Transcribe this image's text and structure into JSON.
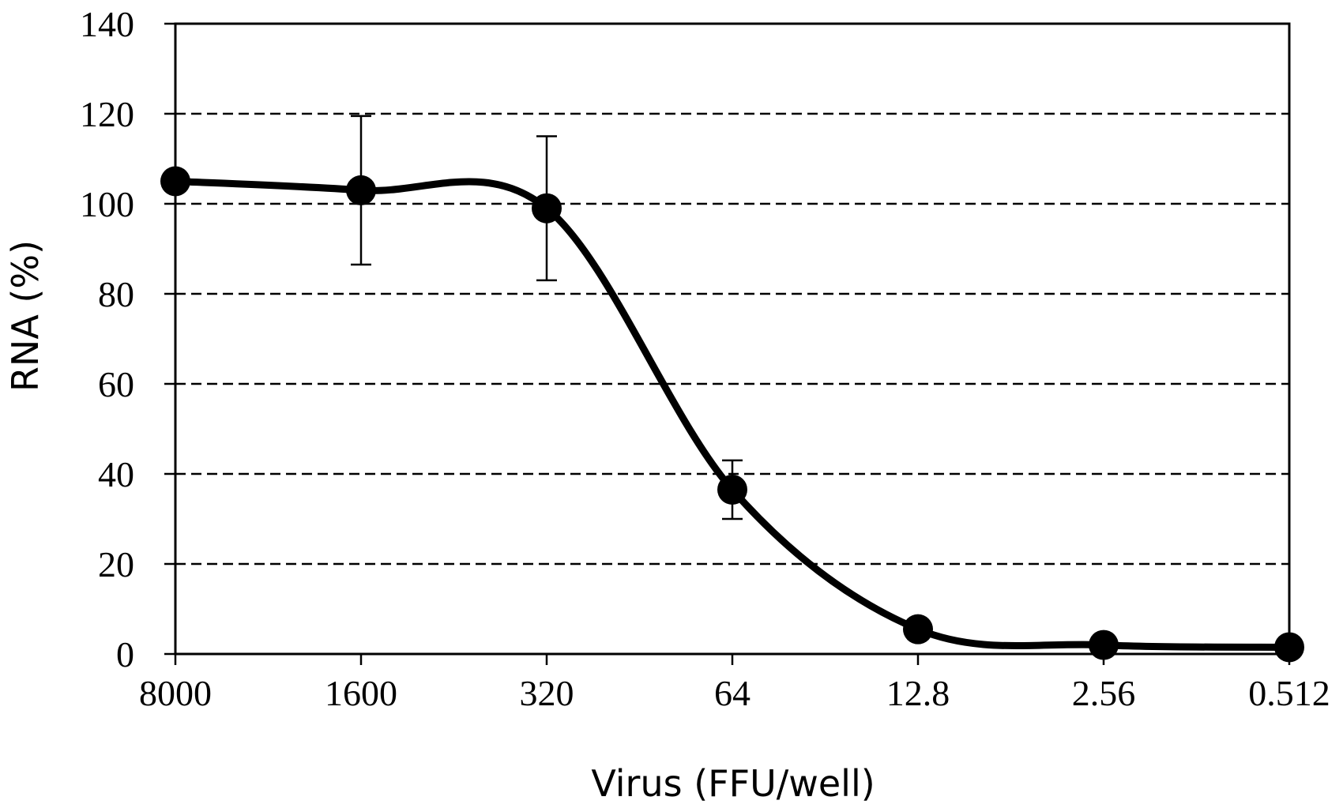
{
  "chart_data": {
    "type": "line",
    "title": "",
    "xlabel": "Virus (FFU/well)",
    "ylabel": "RNA (%)",
    "x": [
      "8000",
      "1600",
      "320",
      "64",
      "12.8",
      "2.56",
      "0.512"
    ],
    "x_scale": "log, evenly spaced 5-fold dilutions",
    "ylim": [
      0,
      140
    ],
    "yticks": [
      0,
      20,
      40,
      60,
      80,
      100,
      120,
      140
    ],
    "grid": "horizontal dashed",
    "series": [
      {
        "values": [
          105,
          103,
          99,
          36.5,
          5.5,
          2,
          1.5
        ],
        "error": [
          null,
          16.5,
          16,
          6.5,
          null,
          null,
          null
        ],
        "marker": "filled circle",
        "line": "smoothed"
      }
    ],
    "colors": {
      "line": "#000000",
      "marker": "#000000",
      "grid": "#000000"
    }
  }
}
